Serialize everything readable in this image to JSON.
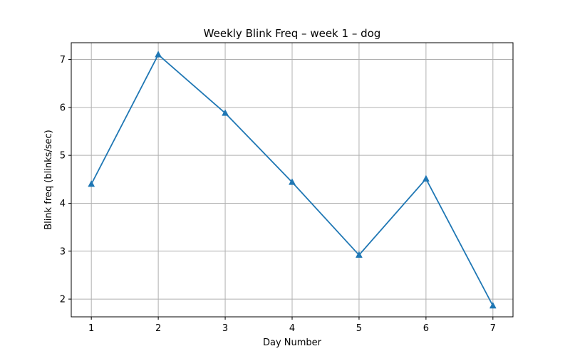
{
  "chart_data": {
    "type": "line",
    "title": "Weekly Blink Freq – week 1 – dog",
    "xlabel": "Day Number",
    "ylabel": "Blink freq (blinks/sec)",
    "x": [
      1,
      2,
      3,
      4,
      5,
      6,
      7
    ],
    "xlim": [
      0.7,
      7.3
    ],
    "ylim": [
      1.63,
      7.35
    ],
    "xticks": [
      1,
      2,
      3,
      4,
      5,
      6,
      7
    ],
    "yticks": [
      2,
      3,
      4,
      5,
      6,
      7
    ],
    "grid": true,
    "marker": "triangle-up",
    "series": [
      {
        "values": [
          4.4,
          7.1,
          5.88,
          4.44,
          2.92,
          4.51,
          1.86
        ],
        "color": "#1f77b4"
      }
    ]
  }
}
